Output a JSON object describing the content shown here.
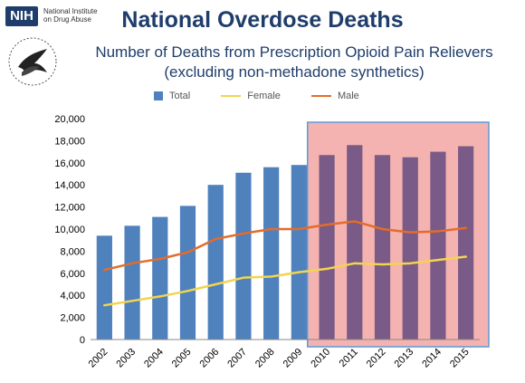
{
  "logo": {
    "nih_badge": "NIH",
    "nih_line1": "National Institute",
    "nih_line2": "on Drug Abuse"
  },
  "chart_data": {
    "type": "bar",
    "title": "National Overdose Deaths",
    "subtitle_line1": "Number of Deaths from Prescription Opioid Pain Relievers",
    "subtitle_line2": "(excluding non-methadone synthetics)",
    "categories": [
      "2002",
      "2003",
      "2004",
      "2005",
      "2006",
      "2007",
      "2008",
      "2009",
      "2010",
      "2011",
      "2012",
      "2013",
      "2014",
      "2015"
    ],
    "series": [
      {
        "name": "Total",
        "kind": "bar",
        "color": "#4f81bd",
        "values": [
          9400,
          10300,
          11100,
          12100,
          14000,
          15100,
          15600,
          15800,
          16700,
          17600,
          16700,
          16500,
          17000,
          17500
        ]
      },
      {
        "name": "Female",
        "kind": "line",
        "color": "#f2d44f",
        "values": [
          3100,
          3500,
          3900,
          4400,
          5000,
          5600,
          5700,
          6100,
          6400,
          6900,
          6800,
          6900,
          7200,
          7500
        ]
      },
      {
        "name": "Male",
        "kind": "line",
        "color": "#e36c2b",
        "values": [
          6300,
          6900,
          7300,
          7900,
          9100,
          9600,
          10000,
          10000,
          10400,
          10700,
          10000,
          9700,
          9800,
          10100
        ]
      }
    ],
    "ylim": [
      0,
      20000
    ],
    "yticks": [
      "0",
      "2,000",
      "4,000",
      "6,000",
      "8,000",
      "10,000",
      "12,000",
      "14,000",
      "16,000",
      "18,000",
      "20,000"
    ],
    "highlight": {
      "from": "2010",
      "to": "2015",
      "color": "#f4b3b0",
      "border": "#5b9bd5"
    },
    "grid": false,
    "legend_position": "top"
  }
}
